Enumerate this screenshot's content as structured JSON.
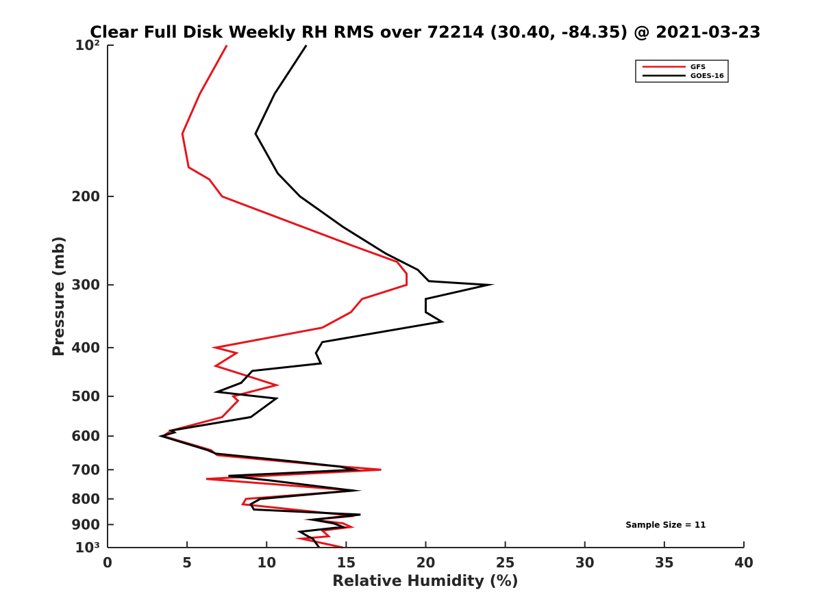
{
  "chart_data": {
    "type": "line",
    "title": "Clear Full Disk Weekly RH RMS over 72214 (30.40, -84.35) @ 2021-03-23",
    "xlabel": "Relative Humidity (%)",
    "ylabel": "Pressure (mb)",
    "xlim": [
      0,
      40
    ],
    "ylim": [
      100,
      1000
    ],
    "yscale": "log",
    "yreversed": true,
    "grid": false,
    "legend_position": "top-right",
    "x_ticks": [
      0,
      5,
      10,
      15,
      20,
      25,
      30,
      35,
      40
    ],
    "x_tick_labels": [
      "0",
      "5",
      "10",
      "15",
      "20",
      "25",
      "30",
      "35",
      "40"
    ],
    "y_ticks": [
      100,
      200,
      300,
      400,
      500,
      600,
      700,
      800,
      900,
      1000
    ],
    "y_tick_labels": [
      "10²",
      "200",
      "300",
      "400",
      "500",
      "600",
      "700",
      "800",
      "900",
      "10³"
    ],
    "series": [
      {
        "name": "GFS",
        "color": "#e8141a",
        "points": [
          [
            7.5,
            100
          ],
          [
            5.8,
            125
          ],
          [
            4.7,
            150
          ],
          [
            5.1,
            175
          ],
          [
            6.4,
            185
          ],
          [
            7.2,
            200
          ],
          [
            15.3,
            250
          ],
          [
            18.2,
            270
          ],
          [
            18.8,
            285
          ],
          [
            18.8,
            300
          ],
          [
            16.0,
            320
          ],
          [
            15.3,
            340
          ],
          [
            13.5,
            365
          ],
          [
            6.8,
            400
          ],
          [
            8.1,
            410
          ],
          [
            6.8,
            435
          ],
          [
            10.6,
            475
          ],
          [
            7.9,
            500
          ],
          [
            8.2,
            510
          ],
          [
            7.2,
            550
          ],
          [
            4.0,
            585
          ],
          [
            3.5,
            600
          ],
          [
            6.5,
            640
          ],
          [
            6.9,
            655
          ],
          [
            13.5,
            685
          ],
          [
            17.2,
            700
          ],
          [
            6.2,
            730
          ],
          [
            15.5,
            770
          ],
          [
            8.7,
            800
          ],
          [
            8.5,
            820
          ],
          [
            15.5,
            865
          ],
          [
            12.9,
            880
          ],
          [
            14.8,
            895
          ],
          [
            15.3,
            910
          ],
          [
            13.5,
            925
          ],
          [
            13.9,
            950
          ],
          [
            12.2,
            960
          ],
          [
            14.8,
            1000
          ]
        ]
      },
      {
        "name": "GOES-16",
        "color": "#000000",
        "points": [
          [
            12.5,
            100
          ],
          [
            10.5,
            125
          ],
          [
            9.3,
            150
          ],
          [
            10.7,
            180
          ],
          [
            12.1,
            200
          ],
          [
            14.8,
            230
          ],
          [
            17.5,
            260
          ],
          [
            19.5,
            280
          ],
          [
            20.2,
            295
          ],
          [
            23.9,
            300
          ],
          [
            20.0,
            320
          ],
          [
            20.0,
            340
          ],
          [
            21.0,
            355
          ],
          [
            13.5,
            390
          ],
          [
            13.1,
            410
          ],
          [
            13.4,
            430
          ],
          [
            9.1,
            445
          ],
          [
            8.4,
            470
          ],
          [
            6.9,
            490
          ],
          [
            10.6,
            505
          ],
          [
            9.0,
            550
          ],
          [
            4.0,
            585
          ],
          [
            4.2,
            590
          ],
          [
            3.4,
            600
          ],
          [
            6.3,
            640
          ],
          [
            6.8,
            650
          ],
          [
            11.9,
            675
          ],
          [
            14.6,
            690
          ],
          [
            15.5,
            700
          ],
          [
            7.6,
            720
          ],
          [
            10.2,
            735
          ],
          [
            15.4,
            770
          ],
          [
            9.6,
            800
          ],
          [
            9.0,
            820
          ],
          [
            9.2,
            840
          ],
          [
            15.9,
            860
          ],
          [
            12.9,
            880
          ],
          [
            14.2,
            895
          ],
          [
            14.8,
            910
          ],
          [
            12.1,
            930
          ],
          [
            12.6,
            950
          ],
          [
            12.9,
            960
          ],
          [
            13.3,
            1000
          ]
        ]
      }
    ],
    "annotation": "Sample Size = 11"
  }
}
